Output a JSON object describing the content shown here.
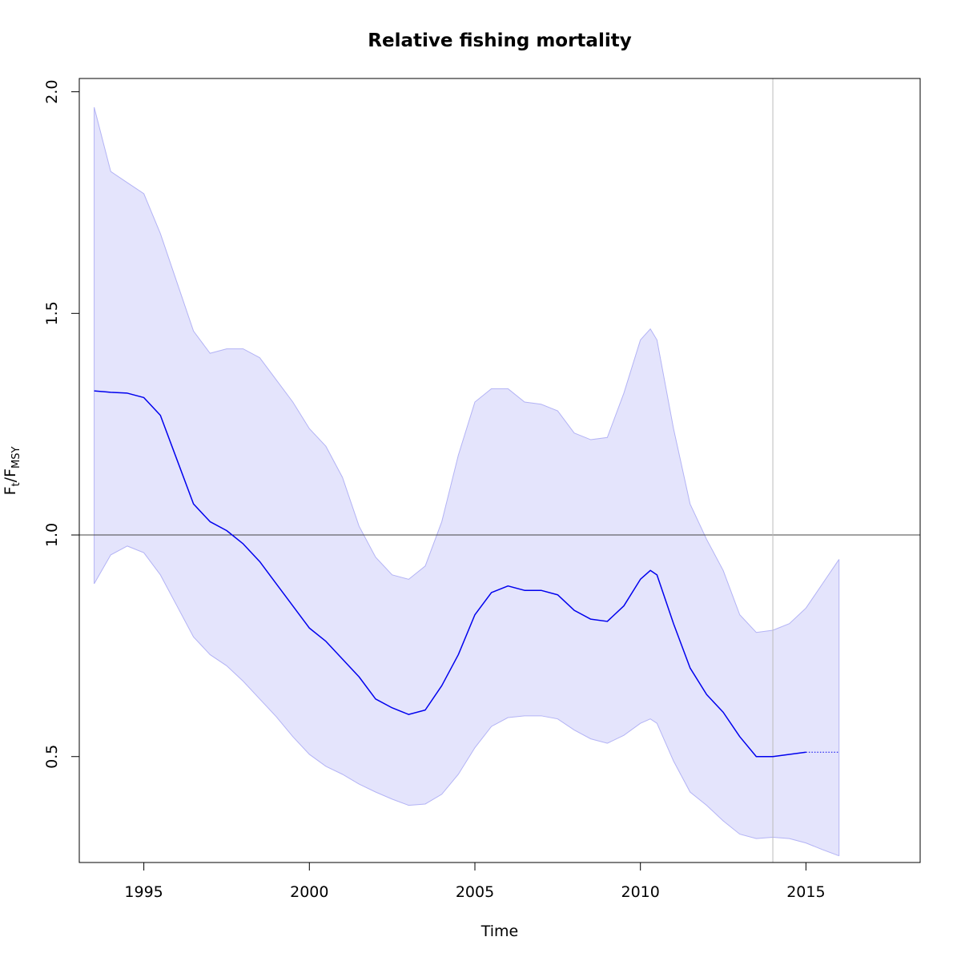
{
  "chart_data": {
    "type": "line",
    "title": "Relative fishing mortality",
    "xlabel": "Time",
    "ylabel": {
      "main": "F",
      "sub1": "t",
      "sep": "/F",
      "sub2": "MSY"
    },
    "xlim": [
      1993.05,
      2018.45
    ],
    "ylim": [
      0.261,
      2.03
    ],
    "x_ticks": [
      1995,
      2000,
      2005,
      2010,
      2015
    ],
    "x_tick_labels": [
      "1995",
      "2000",
      "2005",
      "2010",
      "2015"
    ],
    "y_ticks": [
      0.5,
      1.0,
      1.5,
      2.0
    ],
    "y_tick_labels": [
      "0.5",
      "1.0",
      "1.5",
      "2.0"
    ],
    "reference_hline": 1.0,
    "reference_vline": 2014,
    "grid": false,
    "colors": {
      "estimate": "#0000ee",
      "band_fill": "#e4e4fc",
      "band_edge": "#b3b3f5",
      "hline": "#444444",
      "vline": "#bbbbbb",
      "frame": "#000000"
    },
    "series": [
      {
        "role": "estimate",
        "style": "solid",
        "x": [
          1993.5,
          1994.0,
          1994.5,
          1995.0,
          1995.5,
          1996.0,
          1996.5,
          1997.0,
          1997.5,
          1998.0,
          1998.5,
          1999.0,
          1999.5,
          2000.0,
          2000.5,
          2001.0,
          2001.5,
          2002.0,
          2002.5,
          2003.0,
          2003.5,
          2004.0,
          2004.5,
          2005.0,
          2005.5,
          2006.0,
          2006.5,
          2007.0,
          2007.5,
          2008.0,
          2008.5,
          2009.0,
          2009.5,
          2010.0,
          2010.3,
          2010.5,
          2011.0,
          2011.5,
          2012.0,
          2012.5,
          2013.0,
          2013.5,
          2014.0,
          2014.5,
          2015.0
        ],
        "y": [
          1.325,
          1.322,
          1.32,
          1.31,
          1.27,
          1.17,
          1.07,
          1.03,
          1.01,
          0.98,
          0.94,
          0.89,
          0.84,
          0.79,
          0.76,
          0.72,
          0.68,
          0.63,
          0.61,
          0.595,
          0.605,
          0.66,
          0.73,
          0.82,
          0.87,
          0.885,
          0.875,
          0.875,
          0.865,
          0.83,
          0.81,
          0.805,
          0.84,
          0.9,
          0.92,
          0.91,
          0.8,
          0.7,
          0.64,
          0.6,
          0.545,
          0.5,
          0.5,
          0.505,
          0.51
        ]
      },
      {
        "role": "forecast",
        "style": "dotted",
        "x": [
          2015.0,
          2016.0
        ],
        "y": [
          0.51,
          0.51
        ]
      },
      {
        "role": "upper-ci",
        "style": "band",
        "x": [
          1993.5,
          1994.0,
          1994.5,
          1995.0,
          1995.5,
          1996.0,
          1996.5,
          1997.0,
          1997.5,
          1998.0,
          1998.5,
          1999.0,
          1999.5,
          2000.0,
          2000.5,
          2001.0,
          2001.5,
          2002.0,
          2002.5,
          2003.0,
          2003.5,
          2004.0,
          2004.5,
          2005.0,
          2005.5,
          2006.0,
          2006.5,
          2007.0,
          2007.5,
          2008.0,
          2008.5,
          2009.0,
          2009.5,
          2010.0,
          2010.3,
          2010.5,
          2011.0,
          2011.5,
          2012.0,
          2012.5,
          2013.0,
          2013.5,
          2014.0,
          2014.5,
          2015.0,
          2015.5,
          2016.0
        ],
        "y": [
          1.965,
          1.82,
          1.795,
          1.77,
          1.68,
          1.57,
          1.46,
          1.41,
          1.42,
          1.42,
          1.4,
          1.35,
          1.3,
          1.24,
          1.2,
          1.13,
          1.02,
          0.95,
          0.91,
          0.9,
          0.93,
          1.03,
          1.18,
          1.3,
          1.33,
          1.33,
          1.3,
          1.295,
          1.28,
          1.23,
          1.215,
          1.22,
          1.32,
          1.44,
          1.465,
          1.44,
          1.24,
          1.07,
          0.99,
          0.92,
          0.82,
          0.78,
          0.785,
          0.8,
          0.835,
          0.89,
          0.945
        ]
      },
      {
        "role": "lower-ci",
        "style": "band",
        "x": [
          1993.5,
          1994.0,
          1994.5,
          1995.0,
          1995.5,
          1996.0,
          1996.5,
          1997.0,
          1997.5,
          1998.0,
          1998.5,
          1999.0,
          1999.5,
          2000.0,
          2000.5,
          2001.0,
          2001.5,
          2002.0,
          2002.5,
          2003.0,
          2003.5,
          2004.0,
          2004.5,
          2005.0,
          2005.5,
          2006.0,
          2006.5,
          2007.0,
          2007.5,
          2008.0,
          2008.5,
          2009.0,
          2009.5,
          2010.0,
          2010.3,
          2010.5,
          2011.0,
          2011.5,
          2012.0,
          2012.5,
          2013.0,
          2013.5,
          2014.0,
          2014.5,
          2015.0,
          2015.5,
          2016.0
        ],
        "y": [
          0.89,
          0.955,
          0.975,
          0.96,
          0.91,
          0.84,
          0.77,
          0.73,
          0.705,
          0.67,
          0.63,
          0.59,
          0.545,
          0.505,
          0.478,
          0.46,
          0.438,
          0.42,
          0.404,
          0.39,
          0.393,
          0.415,
          0.46,
          0.52,
          0.568,
          0.588,
          0.592,
          0.592,
          0.585,
          0.56,
          0.54,
          0.53,
          0.548,
          0.575,
          0.585,
          0.575,
          0.49,
          0.42,
          0.39,
          0.355,
          0.325,
          0.315,
          0.318,
          0.315,
          0.305,
          0.29,
          0.276
        ]
      }
    ]
  }
}
